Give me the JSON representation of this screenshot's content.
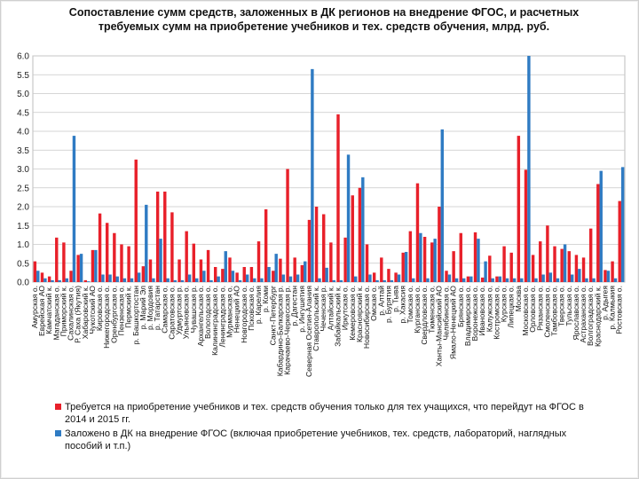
{
  "chart_data": {
    "type": "bar",
    "title": "Сопоставление сумм средств, заложенных в ДК регионов на внедрение ФГОС, и расчетных требуемых сумм на приобретение учебников и тех. средств обучения, млрд. руб.",
    "ylim": [
      0,
      6
    ],
    "yticks": [
      "0.0",
      "0.5",
      "1.0",
      "1.5",
      "2.0",
      "2.5",
      "3.0",
      "3.5",
      "4.0",
      "4.5",
      "5.0",
      "5.5",
      "6.0"
    ],
    "grid": true,
    "legend_position": "bottom",
    "categories": [
      "Амурская о.",
      "Еврейская АО",
      "Камчатский к.",
      "Магаданская о.",
      "Приморский к.",
      "Сахалинская о.",
      "Р. Саха (Якутия)",
      "Хабаровский к.",
      "Чукотский АО",
      "Кировская о.",
      "Нижегородская о.",
      "Оренбургская о.",
      "Пензенская о.",
      "Пермский к.",
      "р. Башкортостан",
      "р. Марий Эл",
      "р. Мордовия",
      "р. Татарстан",
      "Самарская о.",
      "Саратовская о.",
      "Удмуртская р.",
      "Ульяновская о.",
      "Чувашская р.",
      "Архангельская о.",
      "Вологодская о.",
      "Калининградская о.",
      "Ленинградская о.",
      "Мурманская о.",
      "Ненецкий АО",
      "Новгородская о.",
      "Псковская о.",
      "р. Карелия",
      "р. Коми",
      "Санкт-Петербург",
      "Кабардино-Балкарская р.",
      "Карачаево-Черкесская р.",
      "р. Дагестан",
      "р. Ингушетия",
      "Северная Осетия-Алания",
      "Ставропольский к.",
      "Чеченская р.",
      "Алтайский к.",
      "Забайкальский к.",
      "Иркутская о.",
      "Кемеровская о.",
      "Красноярский к.",
      "Новосибирская о.",
      "Омская о.",
      "р. Алтай",
      "р. Бурятия",
      "р. Тыва",
      "р. Хакасия",
      "Томская о.",
      "Курганская о.",
      "Свердловская о.",
      "Тюменская о.",
      "Ханты-Мансийский АО",
      "Челябинская о.",
      "Ямало-Ненецкий АО",
      "Брянская о.",
      "Владимирская о.",
      "Воронежская о.",
      "Ивановская о.",
      "Калужская о.",
      "Костромская о.",
      "Курская о.",
      "Липецкая о.",
      "Москва",
      "Московская о.",
      "Орловская о.",
      "Рязанская о.",
      "Смоленская о.",
      "Тамбовская о.",
      "Тверская о.",
      "Тульская о.",
      "Ярославская о.",
      "Астраханская о.",
      "Волгоградская о.",
      "Краснодарский к.",
      "р. Адыгея",
      "р. Калмыкия",
      "Ростовская о."
    ],
    "category_labels_shown": [
      "Амурская о.",
      "Еврейская АО",
      "Камчатский к.",
      "Магаданская о.",
      "Приморский к.",
      "Сахалинская о.",
      "Р. Саха (Якутия)",
      "Хабаровский к.",
      "Чукотский АО",
      "Кировская о.",
      "Нижегородская о.",
      "Оренбургская о.",
      "Пензенская о.",
      "Пермский к.",
      "р. Башкортостан",
      "р. Марий Эл",
      "р. Мордовия",
      "р. Татарстан",
      "Самарская о.",
      "Саратовская о.",
      "Удмуртская р.",
      "Ульяновская о.",
      "Чувашская р.",
      "Архангельская о.",
      "Вологодская о.",
      "Калининградская о.",
      "Ленинградская о.",
      "Мурманская о.",
      "Ненецкий АО",
      "Новгородская о.",
      "Псковская о.",
      "р. Карелия",
      "р. Коми",
      "Санкт-Петербург",
      "Кабардино-Балкарская р.",
      "Карачаево-Черкесская р.",
      "р. Дагестан",
      "р. Ингушетия",
      "Северная Осетия-Алания",
      "Ставропольский к.",
      "Чеченская р.",
      "Алтайский к.",
      "Забайкальский к.",
      "Иркутская о.",
      "Кемеровская о.",
      "Красноярский к.",
      "Новосибирская о.",
      "Омская о.",
      "р. Алтай",
      "р. Бурятия",
      "р. Тыва",
      "р. Хакасия",
      "Томская о.",
      "Курганская о.",
      "Свердловская о.",
      "Тюменская о.",
      "Ханты-Мансийский АО",
      "Челябинская о.",
      "Ямало-Ненецкий АО",
      "Брянская о.",
      "Владимирская о.",
      "Воронежская о.",
      "Ивановская о.",
      "Калужская о.",
      "Костромская о.",
      "Курская о.",
      "Липецкая о.",
      "Москва",
      "Московская о.",
      "Орловская о.",
      "Рязанская о.",
      "Смоленская о.",
      "Тамбовская о.",
      "Тверская о.",
      "Тульская о.",
      "Ярославская о.",
      "Астраханская о.",
      "Волгоградская о.",
      "Краснодарский к.",
      "р. Адыгея",
      "р. Калмыкия",
      "Ростовская о."
    ],
    "series": [
      {
        "name": "Требуется на приобретение учебников и тех. средств обучения только для тех учащихся, что перейдут на ФГОС в 2014 и 2015 гг.",
        "color": "#e8202a",
        "values": [
          0.55,
          0.25,
          0.15,
          1.18,
          1.05,
          0.3,
          0.72,
          0.05,
          0.85,
          1.82,
          1.57,
          1.3,
          1.0,
          0.95,
          3.25,
          0.42,
          0.6,
          2.4,
          2.4,
          1.85,
          0.6,
          1.35,
          1.02,
          0.6,
          0.85,
          0.4,
          0.35,
          0.65,
          0.25,
          0.4,
          0.4,
          1.08,
          1.93,
          0.3,
          0.62,
          3.0,
          0.65,
          0.45,
          1.65,
          2.0,
          1.8,
          1.05,
          4.45,
          1.18,
          2.3,
          2.5,
          1.0,
          0.25,
          0.65,
          0.35,
          0.25,
          0.78,
          1.35,
          2.62,
          1.2,
          1.05,
          2.0,
          0.3,
          0.82,
          1.3,
          0.15,
          1.32,
          0.12,
          0.7,
          0.15,
          0.95,
          0.78,
          3.88,
          2.98,
          0.72,
          1.08,
          1.5,
          0.95,
          0.88,
          0.82,
          0.72,
          0.65,
          1.42,
          2.6,
          0.32,
          0.55,
          2.15
        ]
      },
      {
        "name": "Заложено в ДК на внедрение ФГОС (включая приобретение учебников, тех. средств, лабораторий, наглядных пособий и т.п.)",
        "color": "#2f7bc3",
        "values": [
          0.3,
          0.1,
          0.05,
          0.05,
          0.1,
          3.88,
          0.75,
          0.02,
          0.85,
          0.2,
          0.2,
          0.15,
          0.1,
          0.1,
          0.25,
          2.05,
          0.1,
          1.15,
          0.1,
          0.05,
          0.05,
          0.2,
          0.1,
          0.3,
          0.05,
          0.15,
          0.82,
          0.3,
          0.05,
          0.2,
          0.1,
          0.1,
          0.4,
          0.75,
          0.2,
          0.15,
          0.2,
          0.55,
          5.65,
          0.1,
          0.38,
          0.05,
          0.05,
          3.38,
          0.15,
          2.78,
          0.2,
          0.05,
          0.05,
          0.05,
          0.2,
          0.8,
          0.1,
          1.3,
          0.1,
          1.15,
          4.05,
          0.2,
          0.1,
          0.1,
          0.15,
          1.15,
          0.55,
          0.1,
          0.15,
          0.1,
          0.1,
          0.1,
          6.0,
          0.1,
          0.2,
          0.25,
          0.1,
          1.0,
          0.2,
          0.35,
          0.1,
          0.1,
          2.95,
          0.3,
          0.1,
          3.05
        ]
      }
    ]
  },
  "legend": {
    "items": [
      {
        "label": "Требуется на приобретение учебников и тех. средств обучения только для тех учащихся, что перейдут на ФГОС в 2014 и 2015 гг.",
        "color": "#e8202a"
      },
      {
        "label": "Заложено в ДК на внедрение ФГОС (включая приобретение учебников, тех. средств, лабораторий, наглядных пособий и т.п.)",
        "color": "#2f7bc3"
      }
    ]
  }
}
